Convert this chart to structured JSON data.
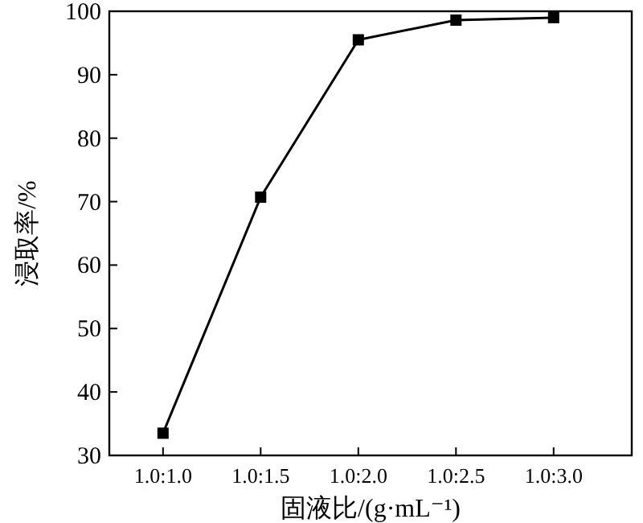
{
  "chart_data": {
    "type": "line",
    "xlabel": "固液比/(g·mL⁻¹)",
    "ylabel": "浸取率/%",
    "categories": [
      "1.0:1.0",
      "1.0:1.5",
      "1.0:2.0",
      "1.0:2.5",
      "1.0:3.0"
    ],
    "values": [
      33.5,
      70.7,
      95.5,
      98.6,
      99.0
    ],
    "color": "#000000",
    "marker": "square",
    "line_style": "solid",
    "ylim": [
      30,
      100
    ],
    "yticks": [
      30,
      40,
      50,
      60,
      70,
      80,
      90,
      100
    ]
  }
}
